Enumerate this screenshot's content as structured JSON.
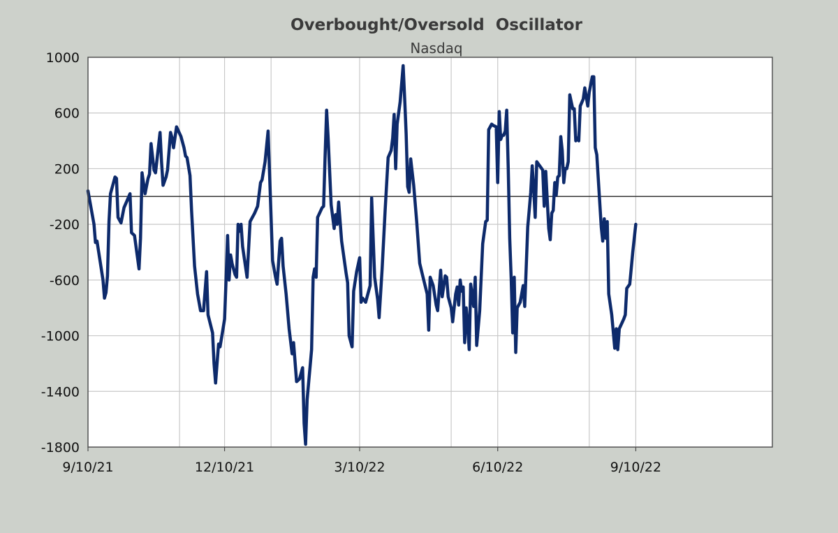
{
  "chart_data": {
    "type": "line",
    "title": "Overbought/Oversold  Oscillator",
    "subtitle": "Nasdaq",
    "xlabel": "",
    "ylabel": "",
    "ylim": [
      -1800,
      1000
    ],
    "yticks": [
      1000,
      600,
      200,
      -200,
      -600,
      -1000,
      -1400,
      -1800
    ],
    "yticklabels": [
      "1000",
      "600",
      "200",
      "-200",
      "-600",
      "-1000",
      "-1400",
      "-1800"
    ],
    "xlim": [
      "2021-09-10",
      "2022-12-10"
    ],
    "xticks": [
      "2021-09-10",
      "2021-12-10",
      "2022-03-10",
      "2022-06-10",
      "2022-09-10"
    ],
    "xticklabels": [
      "9/10/21",
      "12/10/21",
      "3/10/22",
      "6/10/22",
      "9/10/22"
    ],
    "x_gridlines": [
      "2021-09-10",
      "2021-11-10",
      "2021-12-10",
      "2022-01-10",
      "2022-03-10",
      "2022-05-10",
      "2022-06-10",
      "2022-08-10",
      "2022-09-10",
      "2022-12-10"
    ],
    "reference_line": 0,
    "grid": true,
    "series": [
      {
        "color": "#0d2a6b",
        "points": [
          [
            "2021-09-10",
            40
          ],
          [
            "2021-09-14",
            -200
          ],
          [
            "2021-09-15",
            -330
          ],
          [
            "2021-09-16",
            -320
          ],
          [
            "2021-09-20",
            -600
          ],
          [
            "2021-09-21",
            -730
          ],
          [
            "2021-09-22",
            -690
          ],
          [
            "2021-09-23",
            -570
          ],
          [
            "2021-09-24",
            -180
          ],
          [
            "2021-09-25",
            20
          ],
          [
            "2021-09-28",
            140
          ],
          [
            "2021-09-29",
            130
          ],
          [
            "2021-09-30",
            -150
          ],
          [
            "2021-10-02",
            -190
          ],
          [
            "2021-10-04",
            -80
          ],
          [
            "2021-10-06",
            -30
          ],
          [
            "2021-10-08",
            20
          ],
          [
            "2021-10-09",
            -260
          ],
          [
            "2021-10-11",
            -280
          ],
          [
            "2021-10-14",
            -520
          ],
          [
            "2021-10-15",
            -300
          ],
          [
            "2021-10-16",
            170
          ],
          [
            "2021-10-18",
            20
          ],
          [
            "2021-10-20",
            130
          ],
          [
            "2021-10-21",
            160
          ],
          [
            "2021-10-22",
            380
          ],
          [
            "2021-10-24",
            190
          ],
          [
            "2021-10-25",
            170
          ],
          [
            "2021-10-28",
            460
          ],
          [
            "2021-10-29",
            250
          ],
          [
            "2021-10-30",
            80
          ],
          [
            "2021-11-01",
            140
          ],
          [
            "2021-11-02",
            190
          ],
          [
            "2021-11-04",
            460
          ],
          [
            "2021-11-05",
            420
          ],
          [
            "2021-11-06",
            350
          ],
          [
            "2021-11-08",
            500
          ],
          [
            "2021-11-11",
            430
          ],
          [
            "2021-11-13",
            350
          ],
          [
            "2021-11-14",
            290
          ],
          [
            "2021-11-15",
            280
          ],
          [
            "2021-11-17",
            150
          ],
          [
            "2021-11-18",
            -100
          ],
          [
            "2021-11-20",
            -500
          ],
          [
            "2021-11-22",
            -700
          ],
          [
            "2021-11-24",
            -820
          ],
          [
            "2021-11-26",
            -820
          ],
          [
            "2021-11-28",
            -540
          ],
          [
            "2021-11-29",
            -850
          ],
          [
            "2021-12-02",
            -980
          ],
          [
            "2021-12-03",
            -1200
          ],
          [
            "2021-12-04",
            -1340
          ],
          [
            "2021-12-05",
            -1200
          ],
          [
            "2021-12-06",
            -1060
          ],
          [
            "2021-12-07",
            -1080
          ],
          [
            "2021-12-09",
            -950
          ],
          [
            "2021-12-10",
            -880
          ],
          [
            "2021-12-11",
            -600
          ],
          [
            "2021-12-12",
            -280
          ],
          [
            "2021-12-13",
            -600
          ],
          [
            "2021-12-14",
            -420
          ],
          [
            "2021-12-15",
            -480
          ],
          [
            "2021-12-17",
            -560
          ],
          [
            "2021-12-18",
            -580
          ],
          [
            "2021-12-19",
            -200
          ],
          [
            "2021-12-20",
            -250
          ],
          [
            "2021-12-21",
            -200
          ],
          [
            "2021-12-22",
            -360
          ],
          [
            "2021-12-25",
            -580
          ],
          [
            "2021-12-27",
            -180
          ],
          [
            "2021-12-30",
            -120
          ],
          [
            "2022-01-01",
            -70
          ],
          [
            "2022-01-03",
            100
          ],
          [
            "2022-01-04",
            120
          ],
          [
            "2022-01-06",
            250
          ],
          [
            "2022-01-08",
            470
          ],
          [
            "2022-01-10",
            -150
          ],
          [
            "2022-01-11",
            -460
          ],
          [
            "2022-01-13",
            -580
          ],
          [
            "2022-01-14",
            -630
          ],
          [
            "2022-01-16",
            -320
          ],
          [
            "2022-01-17",
            -300
          ],
          [
            "2022-01-18",
            -500
          ],
          [
            "2022-01-20",
            -700
          ],
          [
            "2022-01-22",
            -950
          ],
          [
            "2022-01-24",
            -1130
          ],
          [
            "2022-01-25",
            -1050
          ],
          [
            "2022-01-27",
            -1330
          ],
          [
            "2022-01-29",
            -1310
          ],
          [
            "2022-01-31",
            -1230
          ],
          [
            "2022-02-01",
            -1630
          ],
          [
            "2022-02-02",
            -1780
          ],
          [
            "2022-02-03",
            -1460
          ],
          [
            "2022-02-06",
            -1100
          ],
          [
            "2022-02-07",
            -580
          ],
          [
            "2022-02-08",
            -520
          ],
          [
            "2022-02-09",
            -580
          ],
          [
            "2022-02-10",
            -150
          ],
          [
            "2022-02-13",
            -80
          ],
          [
            "2022-02-14",
            -70
          ],
          [
            "2022-02-15",
            300
          ],
          [
            "2022-02-16",
            620
          ],
          [
            "2022-02-17",
            420
          ],
          [
            "2022-02-19",
            -60
          ],
          [
            "2022-02-21",
            -230
          ],
          [
            "2022-02-22",
            -130
          ],
          [
            "2022-02-23",
            -200
          ],
          [
            "2022-02-24",
            -40
          ],
          [
            "2022-02-26",
            -320
          ],
          [
            "2022-03-01",
            -550
          ],
          [
            "2022-03-02",
            -620
          ],
          [
            "2022-03-03",
            -1000
          ],
          [
            "2022-03-05",
            -1080
          ],
          [
            "2022-03-06",
            -680
          ],
          [
            "2022-03-08",
            -540
          ],
          [
            "2022-03-10",
            -440
          ],
          [
            "2022-03-11",
            -760
          ],
          [
            "2022-03-12",
            -730
          ],
          [
            "2022-03-14",
            -760
          ],
          [
            "2022-03-15",
            -720
          ],
          [
            "2022-03-17",
            -640
          ],
          [
            "2022-03-18",
            -10
          ],
          [
            "2022-03-20",
            -580
          ],
          [
            "2022-03-22",
            -740
          ],
          [
            "2022-03-23",
            -870
          ],
          [
            "2022-03-25",
            -520
          ],
          [
            "2022-03-27",
            -100
          ],
          [
            "2022-03-29",
            280
          ],
          [
            "2022-03-31",
            330
          ],
          [
            "2022-04-01",
            420
          ],
          [
            "2022-04-02",
            590
          ],
          [
            "2022-04-03",
            200
          ],
          [
            "2022-04-04",
            520
          ],
          [
            "2022-04-06",
            680
          ],
          [
            "2022-04-08",
            940
          ],
          [
            "2022-04-09",
            700
          ],
          [
            "2022-04-10",
            450
          ],
          [
            "2022-04-11",
            70
          ],
          [
            "2022-04-12",
            30
          ],
          [
            "2022-04-13",
            270
          ],
          [
            "2022-04-15",
            80
          ],
          [
            "2022-04-17",
            -180
          ],
          [
            "2022-04-19",
            -480
          ],
          [
            "2022-04-21",
            -570
          ],
          [
            "2022-04-24",
            -700
          ],
          [
            "2022-04-25",
            -960
          ],
          [
            "2022-04-26",
            -580
          ],
          [
            "2022-04-28",
            -640
          ],
          [
            "2022-04-30",
            -780
          ],
          [
            "2022-05-01",
            -820
          ],
          [
            "2022-05-03",
            -530
          ],
          [
            "2022-05-04",
            -720
          ],
          [
            "2022-05-06",
            -570
          ],
          [
            "2022-05-07",
            -580
          ],
          [
            "2022-05-08",
            -720
          ],
          [
            "2022-05-10",
            -800
          ],
          [
            "2022-05-11",
            -900
          ],
          [
            "2022-05-13",
            -700
          ],
          [
            "2022-05-14",
            -650
          ],
          [
            "2022-05-15",
            -780
          ],
          [
            "2022-05-16",
            -600
          ],
          [
            "2022-05-17",
            -680
          ],
          [
            "2022-05-18",
            -650
          ],
          [
            "2022-05-19",
            -1050
          ],
          [
            "2022-05-20",
            -800
          ],
          [
            "2022-05-21",
            -920
          ],
          [
            "2022-05-22",
            -1100
          ],
          [
            "2022-05-23",
            -630
          ],
          [
            "2022-05-25",
            -790
          ],
          [
            "2022-05-26",
            -580
          ],
          [
            "2022-05-27",
            -1070
          ],
          [
            "2022-05-29",
            -820
          ],
          [
            "2022-05-31",
            -340
          ],
          [
            "2022-06-02",
            -180
          ],
          [
            "2022-06-03",
            -170
          ],
          [
            "2022-06-04",
            480
          ],
          [
            "2022-06-06",
            520
          ],
          [
            "2022-06-07",
            510
          ],
          [
            "2022-06-09",
            500
          ],
          [
            "2022-06-10",
            100
          ],
          [
            "2022-06-11",
            610
          ],
          [
            "2022-06-12",
            410
          ],
          [
            "2022-06-13",
            440
          ],
          [
            "2022-06-14",
            440
          ],
          [
            "2022-06-15",
            470
          ],
          [
            "2022-06-16",
            620
          ],
          [
            "2022-06-17",
            200
          ],
          [
            "2022-06-18",
            -300
          ],
          [
            "2022-06-19",
            -600
          ],
          [
            "2022-06-20",
            -980
          ],
          [
            "2022-06-21",
            -580
          ],
          [
            "2022-06-22",
            -1120
          ],
          [
            "2022-06-23",
            -800
          ],
          [
            "2022-06-25",
            -760
          ],
          [
            "2022-06-27",
            -640
          ],
          [
            "2022-06-28",
            -790
          ],
          [
            "2022-06-30",
            -220
          ],
          [
            "2022-07-01",
            -100
          ],
          [
            "2022-07-02",
            30
          ],
          [
            "2022-07-03",
            220
          ],
          [
            "2022-07-04",
            50
          ],
          [
            "2022-07-05",
            -150
          ],
          [
            "2022-07-06",
            250
          ],
          [
            "2022-07-08",
            220
          ],
          [
            "2022-07-10",
            190
          ],
          [
            "2022-07-11",
            -70
          ],
          [
            "2022-07-12",
            180
          ],
          [
            "2022-07-14",
            -230
          ],
          [
            "2022-07-15",
            -310
          ],
          [
            "2022-07-16",
            -120
          ],
          [
            "2022-07-17",
            -100
          ],
          [
            "2022-07-18",
            100
          ],
          [
            "2022-07-19",
            10
          ],
          [
            "2022-07-20",
            140
          ],
          [
            "2022-07-21",
            150
          ],
          [
            "2022-07-22",
            430
          ],
          [
            "2022-07-23",
            330
          ],
          [
            "2022-07-24",
            100
          ],
          [
            "2022-07-25",
            200
          ],
          [
            "2022-07-26",
            200
          ],
          [
            "2022-07-27",
            250
          ],
          [
            "2022-07-28",
            730
          ],
          [
            "2022-07-29",
            680
          ],
          [
            "2022-07-30",
            630
          ],
          [
            "2022-07-31",
            630
          ],
          [
            "2022-08-01",
            400
          ],
          [
            "2022-08-02",
            420
          ],
          [
            "2022-08-03",
            400
          ],
          [
            "2022-08-04",
            650
          ],
          [
            "2022-08-06",
            700
          ],
          [
            "2022-08-07",
            780
          ],
          [
            "2022-08-09",
            650
          ],
          [
            "2022-08-10",
            750
          ],
          [
            "2022-08-12",
            860
          ],
          [
            "2022-08-13",
            860
          ],
          [
            "2022-08-14",
            350
          ],
          [
            "2022-08-15",
            300
          ],
          [
            "2022-08-18",
            -220
          ],
          [
            "2022-08-19",
            -320
          ],
          [
            "2022-08-20",
            -160
          ],
          [
            "2022-08-21",
            -300
          ],
          [
            "2022-08-22",
            -180
          ],
          [
            "2022-08-23",
            -700
          ],
          [
            "2022-08-25",
            -850
          ],
          [
            "2022-08-27",
            -1090
          ],
          [
            "2022-08-28",
            -950
          ],
          [
            "2022-08-29",
            -1100
          ],
          [
            "2022-08-30",
            -950
          ],
          [
            "2022-09-02",
            -880
          ],
          [
            "2022-09-03",
            -850
          ],
          [
            "2022-09-04",
            -660
          ],
          [
            "2022-09-06",
            -630
          ],
          [
            "2022-09-08",
            -400
          ],
          [
            "2022-09-10",
            -200
          ]
        ]
      }
    ]
  }
}
